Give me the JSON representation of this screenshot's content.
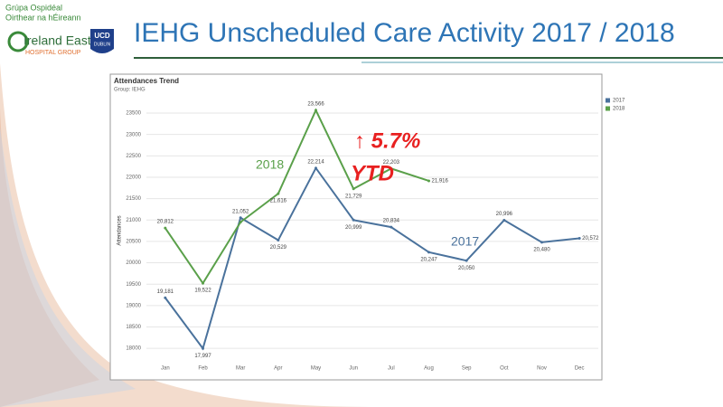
{
  "header": {
    "group_name_1": "Grúpa Ospidéal",
    "group_name_2": "Oirthear na hÉireann",
    "logo_name": "Ireland East",
    "logo_sub": "HOSPITAL GROUP",
    "ucd": "UCD",
    "ucd_sub": "DUBLIN",
    "title": "IEHG Unscheduled Care Activity 2017 / 2018"
  },
  "chart_data": {
    "type": "line",
    "title": "Attendances Trend",
    "subtitle": "Group: IEHG",
    "y_label": "Attendances",
    "categories": [
      "Jan",
      "Feb",
      "Mar",
      "Apr",
      "May",
      "Jun",
      "Jul",
      "Aug",
      "Sep",
      "Oct",
      "Nov",
      "Dec"
    ],
    "series": [
      {
        "name": "2017",
        "color": "#4a729c",
        "values": [
          19181,
          17997,
          21052,
          20529,
          22214,
          20999,
          20834,
          20247,
          20050,
          20996,
          20480,
          20572
        ],
        "value_labels": [
          "19,181",
          "17,997",
          "21,052",
          "20,529",
          "22,214",
          "20,999",
          "20,834",
          "20,247",
          "20,050",
          "20,996",
          "20,480",
          "20,572"
        ]
      },
      {
        "name": "2018",
        "color": "#5aa04a",
        "values": [
          20812,
          19522,
          20950,
          21616,
          23566,
          21729,
          22203,
          21916,
          null,
          null,
          null,
          null
        ],
        "value_labels": [
          "20,812",
          "19,522",
          null,
          "21,616",
          "23,566",
          "21,729",
          "22,203",
          "21,916",
          null,
          null,
          null,
          null
        ]
      }
    ],
    "ylim": [
      17580,
      23860
    ],
    "yticks": [
      18000,
      18500,
      19000,
      19500,
      20000,
      20500,
      21000,
      21500,
      22000,
      22500,
      23000,
      23500
    ],
    "grid": true,
    "legend": "top-right",
    "annotations": [
      "2018",
      "2017",
      "↑ 5.7%",
      "YTD"
    ]
  }
}
